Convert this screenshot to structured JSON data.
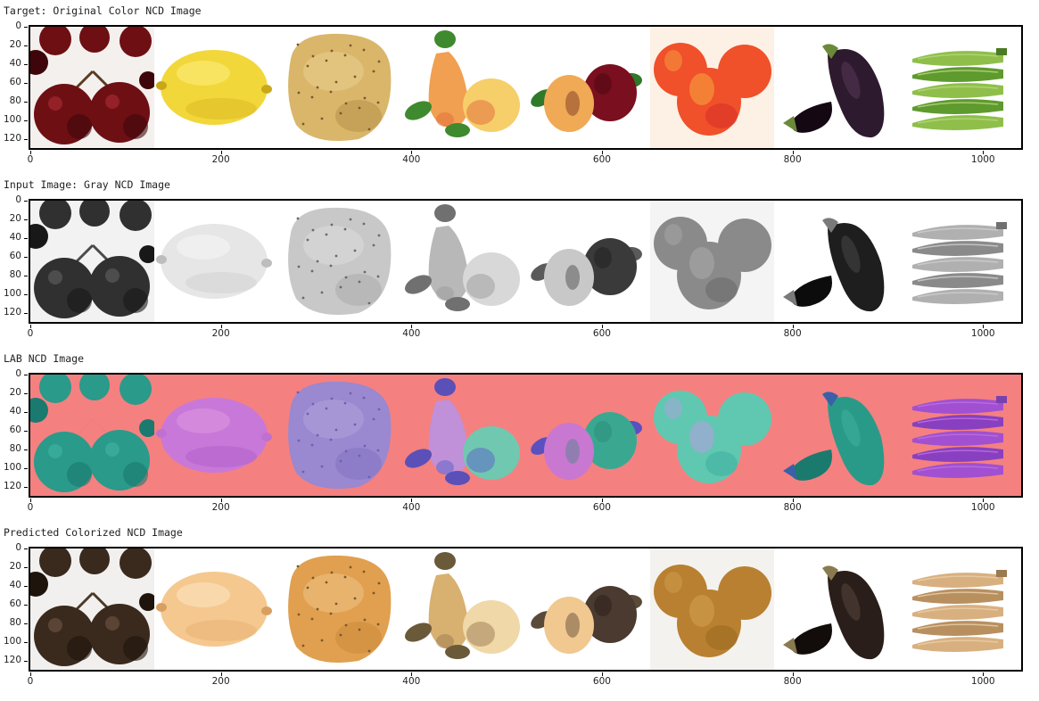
{
  "rows": [
    {
      "title": "Target: Original Color NCD Image",
      "mode": "color"
    },
    {
      "title": "Input Image: Gray NCD Image",
      "mode": "gray"
    },
    {
      "title": "LAB NCD Image",
      "mode": "lab"
    },
    {
      "title": "Predicted Colorized NCD Image",
      "mode": "pred"
    }
  ],
  "y_ticks": [
    "0",
    "20",
    "40",
    "60",
    "80",
    "100",
    "120"
  ],
  "x_ticks": [
    "0",
    "200",
    "400",
    "600",
    "800",
    "1000"
  ],
  "tiles": [
    "cherries",
    "lemon",
    "potato",
    "pears",
    "plums",
    "peaches",
    "eggplants",
    "okra"
  ]
}
